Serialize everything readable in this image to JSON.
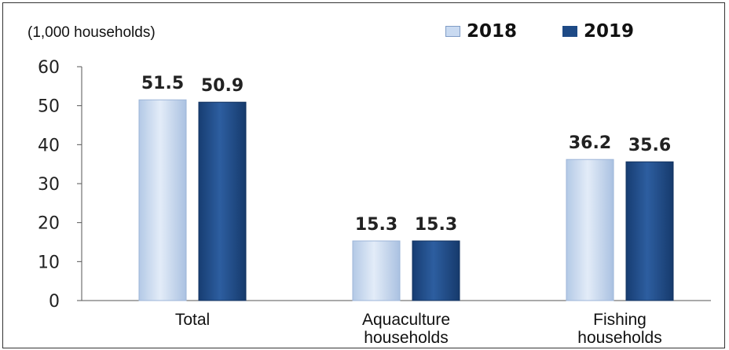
{
  "chart_data": {
    "type": "bar",
    "unit_label": "(1,000 households)",
    "categories": [
      "Total",
      "Aquaculture\nhouseholds",
      "Fishing\nhouseholds"
    ],
    "series": [
      {
        "name": "2018",
        "values": [
          51.5,
          15.3,
          36.2
        ],
        "color": "#c9daf1"
      },
      {
        "name": "2019",
        "values": [
          50.9,
          15.3,
          35.6
        ],
        "color": "#1e4a86"
      }
    ],
    "ylim": [
      0,
      60
    ],
    "yticks": [
      0,
      10,
      20,
      30,
      40,
      50,
      60
    ],
    "legend_position": "top-right",
    "grid": false
  }
}
